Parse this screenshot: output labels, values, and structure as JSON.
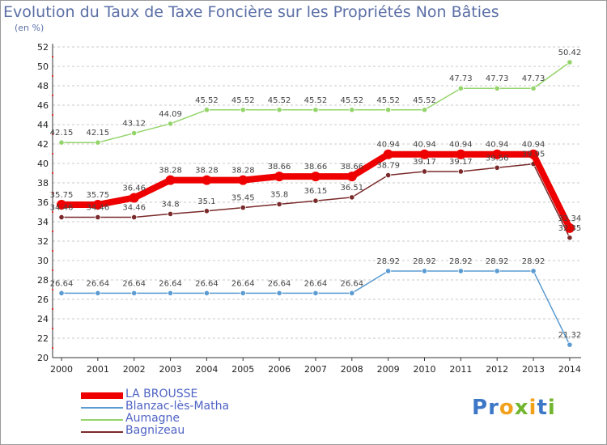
{
  "title": "Evolution du Taux de Taxe Foncière sur les Propriétés Non Bâties",
  "unit_label": "(en %)",
  "logo": {
    "text": "Proxiti",
    "colors": [
      "#3d78c8",
      "#f2a11c",
      "#71b62e"
    ]
  },
  "chart_data": {
    "type": "line",
    "title": "Evolution du Taux de Taxe Foncière sur les Propriétés Non Bâties",
    "ylabel": "(en %)",
    "xlabel": "",
    "ylim": [
      20,
      52
    ],
    "yticks": [
      20,
      22,
      24,
      26,
      28,
      30,
      32,
      34,
      36,
      38,
      40,
      42,
      44,
      46,
      48,
      50,
      52
    ],
    "x": [
      "2000",
      "2001",
      "2002",
      "2003",
      "2004",
      "2005",
      "2006",
      "2007",
      "2008",
      "2009",
      "2010",
      "2011",
      "2012",
      "2013",
      "2014"
    ],
    "grid": "horizontal dashed",
    "legend_position": "bottom-left",
    "series": [
      {
        "name": "LA BROUSSE",
        "color": "#ee0000",
        "style": "thick",
        "values": [
          35.75,
          35.75,
          36.46,
          38.28,
          38.28,
          38.28,
          38.66,
          38.66,
          38.66,
          40.94,
          40.94,
          40.94,
          40.94,
          40.94,
          33.34
        ],
        "labels": [
          "35.75",
          "35.75",
          "36.46",
          "38.28",
          "38.28",
          "38.28",
          "38.66",
          "38.66",
          "38.66",
          "40.94",
          "40.94",
          "40.94",
          "40.94",
          "40.94",
          "33.34"
        ]
      },
      {
        "name": "Blanzac-lès-Matha",
        "color": "#5a9bd2",
        "style": "thin",
        "values": [
          26.64,
          26.64,
          26.64,
          26.64,
          26.64,
          26.64,
          26.64,
          26.64,
          26.64,
          28.92,
          28.92,
          28.92,
          28.92,
          28.92,
          21.32
        ],
        "labels": [
          "26.64",
          "26.64",
          "26.64",
          "26.64",
          "26.64",
          "26.64",
          "26.64",
          "26.64",
          "26.64",
          "28.92",
          "28.92",
          "28.92",
          "28.92",
          "28.92",
          "21.32"
        ]
      },
      {
        "name": "Aumagne",
        "color": "#94d46a",
        "style": "thin",
        "values": [
          42.15,
          42.15,
          43.12,
          44.09,
          45.52,
          45.52,
          45.52,
          45.52,
          45.52,
          45.52,
          45.52,
          47.73,
          47.73,
          47.73,
          50.42
        ],
        "labels": [
          "42.15",
          "42.15",
          "43.12",
          "44.09",
          "45.52",
          "45.52",
          "45.52",
          "45.52",
          "45.52",
          "45.52",
          "45.52",
          "47.73",
          "47.73",
          "47.73",
          "50.42"
        ]
      },
      {
        "name": "Bagnizeau",
        "color": "#7a2a2a",
        "style": "thin",
        "values": [
          34.46,
          34.46,
          34.46,
          34.8,
          35.1,
          35.45,
          35.8,
          36.15,
          36.51,
          38.79,
          39.17,
          39.17,
          39.56,
          39.95,
          32.35
        ],
        "labels": [
          "34.46",
          "34.46",
          "34.46",
          "34.8",
          "35.1",
          "35.45",
          "35.8",
          "36.15",
          "36.51",
          "38.79",
          "39.17",
          "39.17",
          "39.56",
          "39.95",
          "32.35"
        ]
      }
    ]
  }
}
